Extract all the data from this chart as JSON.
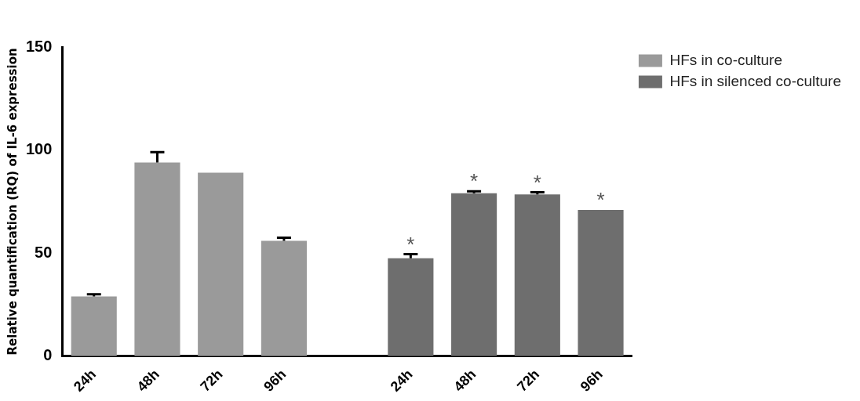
{
  "chart_data": {
    "type": "bar",
    "ylabel": "Relative quantification (RQ) of IL-6 expression",
    "categories": [
      "24h",
      "48h",
      "72h",
      "96h",
      null,
      "24h",
      "48h",
      "72h",
      "96h"
    ],
    "series": [
      {
        "name": "HFs in co-culture",
        "color": "#9a9a9a",
        "values": [
          29,
          94,
          89,
          56,
          null,
          null,
          null,
          null,
          null
        ],
        "errors": [
          [
            29,
            30
          ],
          [
            94,
            99
          ],
          null,
          [
            56,
            57.5
          ],
          null,
          null,
          null,
          null,
          null
        ]
      },
      {
        "name": "HFs in silenced co-culture",
        "color": "#6e6e6e",
        "values": [
          null,
          null,
          null,
          null,
          null,
          47.5,
          79,
          78.5,
          71
        ],
        "errors": [
          null,
          null,
          null,
          null,
          null,
          [
            47.5,
            49.5
          ],
          [
            79,
            80
          ],
          [
            78.5,
            79.5
          ],
          null
        ],
        "value_labels": [
          null,
          null,
          null,
          null,
          null,
          "*",
          "*",
          "*",
          "*"
        ]
      }
    ],
    "ylim": [
      0,
      150
    ],
    "yticks": [
      0,
      50,
      100,
      150
    ],
    "grid": false,
    "legend": "top right"
  }
}
